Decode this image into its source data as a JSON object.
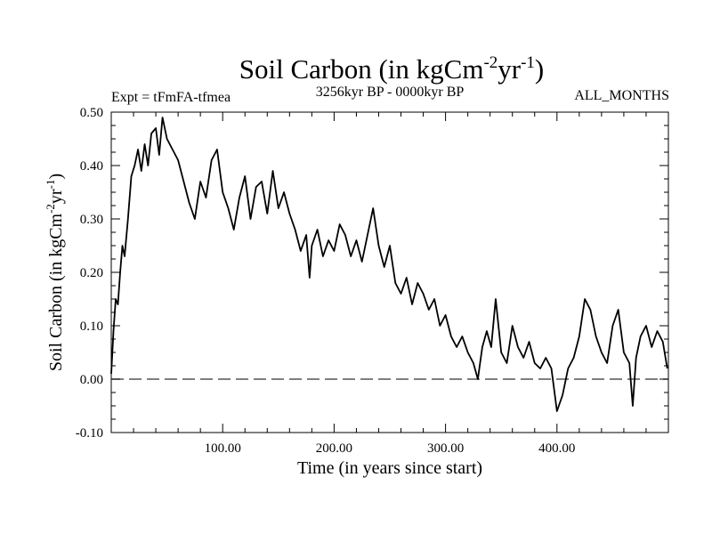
{
  "chart_data": {
    "type": "line",
    "title_main": "Soil Carbon (in kgCm",
    "title_sup1": "-2",
    "title_mid": "yr",
    "title_sup2": "-1",
    "title_end": ")",
    "subtitle_left": "Expt = tFmFA-tfmea",
    "subtitle_center": "3256kyr BP - 0000kyr BP",
    "subtitle_right": "ALL_MONTHS",
    "xlabel": "Time (in years since start)",
    "ylabel_main": "Soil Carbon (in kgCm",
    "ylabel_sup1": "-2",
    "ylabel_mid": "yr",
    "ylabel_sup2": "-1",
    "ylabel_end": ")",
    "xlim": [
      0,
      500
    ],
    "ylim": [
      -0.1,
      0.5
    ],
    "x_ticks": [
      {
        "value": 100,
        "label": "100.00"
      },
      {
        "value": 200,
        "label": "200.00"
      },
      {
        "value": 300,
        "label": "300.00"
      },
      {
        "value": 400,
        "label": "400.00"
      }
    ],
    "y_ticks": [
      {
        "value": 0.5,
        "label": "0.50"
      },
      {
        "value": 0.4,
        "label": "0.40"
      },
      {
        "value": 0.3,
        "label": "0.30"
      },
      {
        "value": 0.2,
        "label": "0.20"
      },
      {
        "value": 0.1,
        "label": "0.10"
      },
      {
        "value": 0.0,
        "label": "0.00"
      },
      {
        "value": -0.1,
        "label": "-0.10"
      }
    ],
    "reference_line": {
      "y": 0,
      "style": "dashed"
    },
    "series": [
      {
        "name": "Soil Carbon",
        "color": "#000000",
        "x": [
          0,
          2,
          4,
          6,
          8,
          10,
          12,
          15,
          18,
          21,
          24,
          27,
          30,
          33,
          36,
          40,
          43,
          46,
          50,
          55,
          60,
          65,
          70,
          75,
          80,
          85,
          90,
          95,
          100,
          105,
          110,
          115,
          120,
          125,
          130,
          135,
          140,
          145,
          150,
          155,
          160,
          165,
          170,
          175,
          178,
          180,
          185,
          190,
          195,
          200,
          205,
          210,
          215,
          220,
          225,
          230,
          235,
          240,
          245,
          250,
          255,
          260,
          265,
          270,
          275,
          280,
          285,
          290,
          295,
          300,
          305,
          310,
          315,
          320,
          325,
          329,
          333,
          337,
          341,
          345,
          350,
          355,
          360,
          365,
          370,
          375,
          380,
          385,
          390,
          395,
          400,
          405,
          410,
          415,
          420,
          425,
          430,
          435,
          440,
          445,
          450,
          455,
          460,
          465,
          468,
          471,
          475,
          480,
          485,
          490,
          495,
          499
        ],
        "y": [
          0.01,
          0.09,
          0.15,
          0.14,
          0.2,
          0.25,
          0.23,
          0.3,
          0.38,
          0.4,
          0.43,
          0.39,
          0.44,
          0.4,
          0.46,
          0.47,
          0.42,
          0.49,
          0.45,
          0.43,
          0.41,
          0.37,
          0.33,
          0.3,
          0.37,
          0.34,
          0.41,
          0.43,
          0.35,
          0.32,
          0.28,
          0.34,
          0.38,
          0.3,
          0.36,
          0.37,
          0.31,
          0.39,
          0.32,
          0.35,
          0.31,
          0.28,
          0.24,
          0.27,
          0.19,
          0.25,
          0.28,
          0.23,
          0.26,
          0.24,
          0.29,
          0.27,
          0.23,
          0.26,
          0.22,
          0.27,
          0.32,
          0.25,
          0.21,
          0.25,
          0.18,
          0.16,
          0.19,
          0.14,
          0.18,
          0.16,
          0.13,
          0.15,
          0.1,
          0.12,
          0.08,
          0.06,
          0.08,
          0.05,
          0.03,
          0.0,
          0.06,
          0.09,
          0.06,
          0.15,
          0.05,
          0.03,
          0.1,
          0.06,
          0.04,
          0.07,
          0.03,
          0.02,
          0.04,
          0.02,
          -0.06,
          -0.03,
          0.02,
          0.04,
          0.08,
          0.15,
          0.13,
          0.08,
          0.05,
          0.03,
          0.1,
          0.13,
          0.05,
          0.03,
          -0.05,
          0.04,
          0.08,
          0.1,
          0.06,
          0.09,
          0.07,
          0.02
        ]
      }
    ]
  }
}
